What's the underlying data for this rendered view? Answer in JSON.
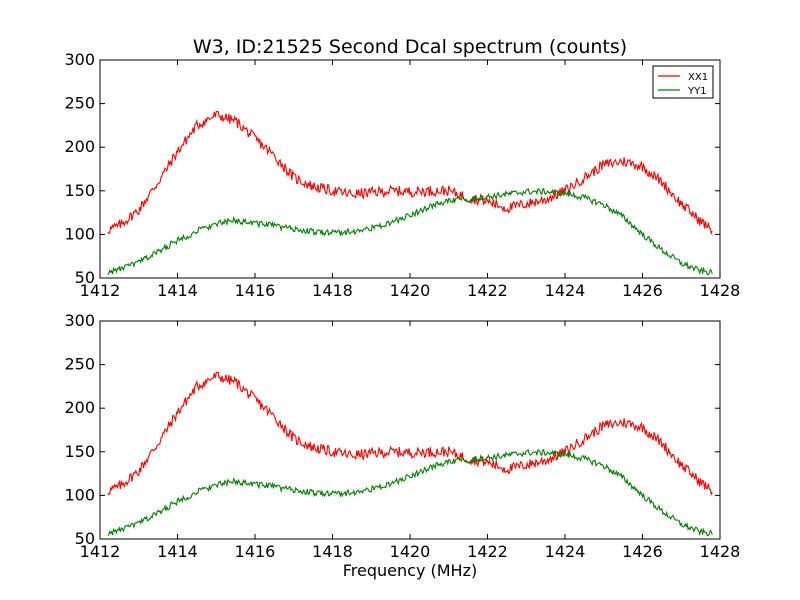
{
  "chart_data": [
    {
      "type": "line",
      "title": "W3, ID:21525 Second Dcal spectrum (counts)",
      "xlabel": "",
      "ylabel": "",
      "xlim": [
        1412,
        1428
      ],
      "ylim": [
        50,
        300
      ],
      "xticks": [
        "1412",
        "1414",
        "1416",
        "1418",
        "1420",
        "1422",
        "1424",
        "1426",
        "1428"
      ],
      "yticks": [
        "50",
        "100",
        "150",
        "200",
        "250",
        "300"
      ],
      "legend": "top-right",
      "grid": false,
      "series": [
        {
          "name": "XX1",
          "color": "#ff0000",
          "x": [
            1412.2,
            1412.5,
            1413.0,
            1413.5,
            1414.0,
            1414.5,
            1415.0,
            1415.5,
            1416.0,
            1416.5,
            1417.0,
            1417.5,
            1418.0,
            1418.5,
            1419.0,
            1419.5,
            1420.0,
            1420.5,
            1421.0,
            1421.5,
            1422.0,
            1422.5,
            1423.0,
            1423.5,
            1424.0,
            1424.5,
            1425.0,
            1425.5,
            1426.0,
            1426.5,
            1427.0,
            1427.5,
            1427.8
          ],
          "y": [
            105,
            110,
            128,
            160,
            195,
            225,
            237,
            230,
            210,
            190,
            165,
            155,
            150,
            146,
            148,
            150,
            149,
            150,
            150,
            142,
            138,
            130,
            135,
            140,
            150,
            165,
            180,
            184,
            178,
            160,
            135,
            115,
            105
          ]
        },
        {
          "name": "YY1",
          "color": "#008000",
          "x": [
            1412.2,
            1412.5,
            1413.0,
            1413.5,
            1414.0,
            1414.5,
            1415.0,
            1415.5,
            1416.0,
            1416.5,
            1417.0,
            1417.5,
            1418.0,
            1418.5,
            1419.0,
            1419.5,
            1420.0,
            1420.5,
            1421.0,
            1421.5,
            1422.0,
            1422.5,
            1423.0,
            1423.5,
            1424.0,
            1424.5,
            1425.0,
            1425.5,
            1426.0,
            1426.5,
            1427.0,
            1427.5,
            1427.8
          ],
          "y": [
            56,
            60,
            68,
            80,
            93,
            104,
            112,
            116,
            113,
            110,
            106,
            103,
            102,
            103,
            107,
            113,
            122,
            132,
            138,
            141,
            143,
            146,
            149,
            149,
            147,
            142,
            134,
            120,
            100,
            82,
            67,
            58,
            56
          ]
        }
      ]
    },
    {
      "type": "line",
      "title": "",
      "xlabel": "Frequency (MHz)",
      "ylabel": "",
      "xlim": [
        1412,
        1428
      ],
      "ylim": [
        50,
        300
      ],
      "xticks": [
        "1412",
        "1414",
        "1416",
        "1418",
        "1420",
        "1422",
        "1424",
        "1426",
        "1428"
      ],
      "yticks": [
        "50",
        "100",
        "150",
        "200",
        "250",
        "300"
      ],
      "grid": false,
      "series": [
        {
          "color": "#ff0000",
          "x": [
            1412.2,
            1412.5,
            1413.0,
            1413.5,
            1414.0,
            1414.5,
            1415.0,
            1415.5,
            1416.0,
            1416.5,
            1417.0,
            1417.5,
            1418.0,
            1418.5,
            1419.0,
            1419.5,
            1420.0,
            1420.5,
            1421.0,
            1421.5,
            1422.0,
            1422.5,
            1423.0,
            1423.5,
            1424.0,
            1424.5,
            1425.0,
            1425.5,
            1426.0,
            1426.5,
            1427.0,
            1427.5,
            1427.8
          ],
          "y": [
            105,
            110,
            128,
            160,
            195,
            225,
            237,
            230,
            210,
            190,
            165,
            155,
            150,
            146,
            148,
            150,
            149,
            150,
            150,
            142,
            138,
            130,
            135,
            140,
            150,
            165,
            180,
            184,
            178,
            160,
            135,
            115,
            105
          ]
        },
        {
          "color": "#008000",
          "x": [
            1412.2,
            1412.5,
            1413.0,
            1413.5,
            1414.0,
            1414.5,
            1415.0,
            1415.5,
            1416.0,
            1416.5,
            1417.0,
            1417.5,
            1418.0,
            1418.5,
            1419.0,
            1419.5,
            1420.0,
            1420.5,
            1421.0,
            1421.5,
            1422.0,
            1422.5,
            1423.0,
            1423.5,
            1424.0,
            1424.5,
            1425.0,
            1425.5,
            1426.0,
            1426.5,
            1427.0,
            1427.5,
            1427.8
          ],
          "y": [
            56,
            60,
            68,
            80,
            93,
            104,
            112,
            116,
            113,
            110,
            106,
            103,
            102,
            103,
            107,
            113,
            122,
            132,
            138,
            141,
            143,
            146,
            149,
            149,
            147,
            142,
            134,
            120,
            100,
            82,
            67,
            58,
            56
          ]
        }
      ]
    }
  ]
}
